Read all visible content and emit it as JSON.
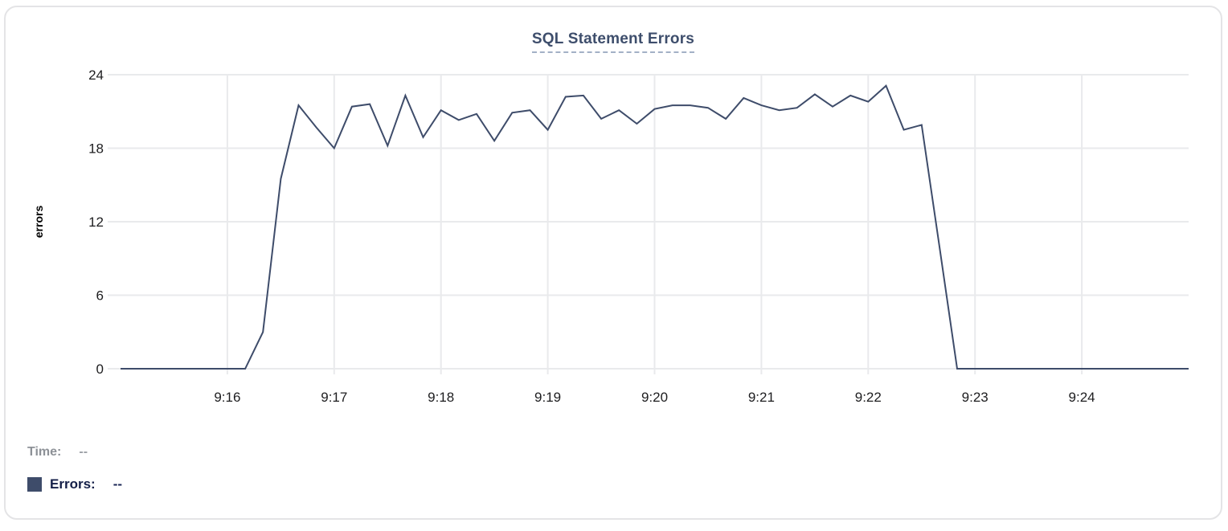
{
  "card": {
    "border_color": "#e4e4e6",
    "background": "#ffffff"
  },
  "chart_data": {
    "type": "line",
    "title": "SQL Statement Errors",
    "xlabel": "",
    "ylabel": "errors",
    "ylim": [
      0,
      24
    ],
    "y_ticks": [
      0,
      6,
      12,
      18,
      24
    ],
    "x_ticks": [
      "9:16",
      "9:17",
      "9:18",
      "9:19",
      "9:20",
      "9:21",
      "9:22",
      "9:23",
      "9:24"
    ],
    "x_range": [
      "9:15:00",
      "9:25:00"
    ],
    "grid": true,
    "legend_position": "bottom-left",
    "series": [
      {
        "name": "Errors",
        "color": "#3e4c6a",
        "x": [
          "9:15:00",
          "9:15:10",
          "9:15:20",
          "9:15:30",
          "9:15:40",
          "9:15:50",
          "9:16:00",
          "9:16:10",
          "9:16:20",
          "9:16:30",
          "9:16:40",
          "9:16:50",
          "9:17:00",
          "9:17:10",
          "9:17:20",
          "9:17:30",
          "9:17:40",
          "9:17:50",
          "9:18:00",
          "9:18:10",
          "9:18:20",
          "9:18:30",
          "9:18:40",
          "9:18:50",
          "9:19:00",
          "9:19:10",
          "9:19:20",
          "9:19:30",
          "9:19:40",
          "9:19:50",
          "9:20:00",
          "9:20:10",
          "9:20:20",
          "9:20:30",
          "9:20:40",
          "9:20:50",
          "9:21:00",
          "9:21:10",
          "9:21:20",
          "9:21:30",
          "9:21:40",
          "9:21:50",
          "9:22:00",
          "9:22:10",
          "9:22:20",
          "9:22:30",
          "9:22:40",
          "9:22:50",
          "9:23:00",
          "9:23:10",
          "9:23:20",
          "9:23:30",
          "9:23:40",
          "9:23:50",
          "9:24:00",
          "9:24:10",
          "9:24:20",
          "9:24:30",
          "9:24:40",
          "9:24:50",
          "9:25:00"
        ],
        "values": [
          0,
          0,
          0,
          0,
          0,
          0,
          0,
          0,
          3,
          15.5,
          21.5,
          19.7,
          18,
          21.4,
          21.6,
          18.2,
          22.3,
          18.9,
          21.1,
          20.3,
          20.8,
          18.6,
          20.9,
          21.1,
          19.5,
          22.2,
          22.3,
          20.4,
          21.1,
          20,
          21.2,
          21.5,
          21.5,
          21.3,
          20.4,
          22.1,
          21.5,
          21.1,
          21.3,
          22.4,
          21.4,
          22.3,
          21.8,
          23.1,
          19.5,
          19.9,
          10,
          0,
          0,
          0,
          0,
          0,
          0,
          0,
          0,
          0,
          0,
          0,
          0,
          0,
          0
        ]
      }
    ]
  },
  "tooltip": {
    "time_label": "Time:",
    "time_value": "--",
    "errors_label": "Errors:",
    "errors_value": "--"
  },
  "colors": {
    "accent": "#3e4c6a",
    "title": "#3e4e6c",
    "grid": "#e9eaec",
    "tick_text": "#1d1d1f",
    "axis_label": "#000000"
  }
}
